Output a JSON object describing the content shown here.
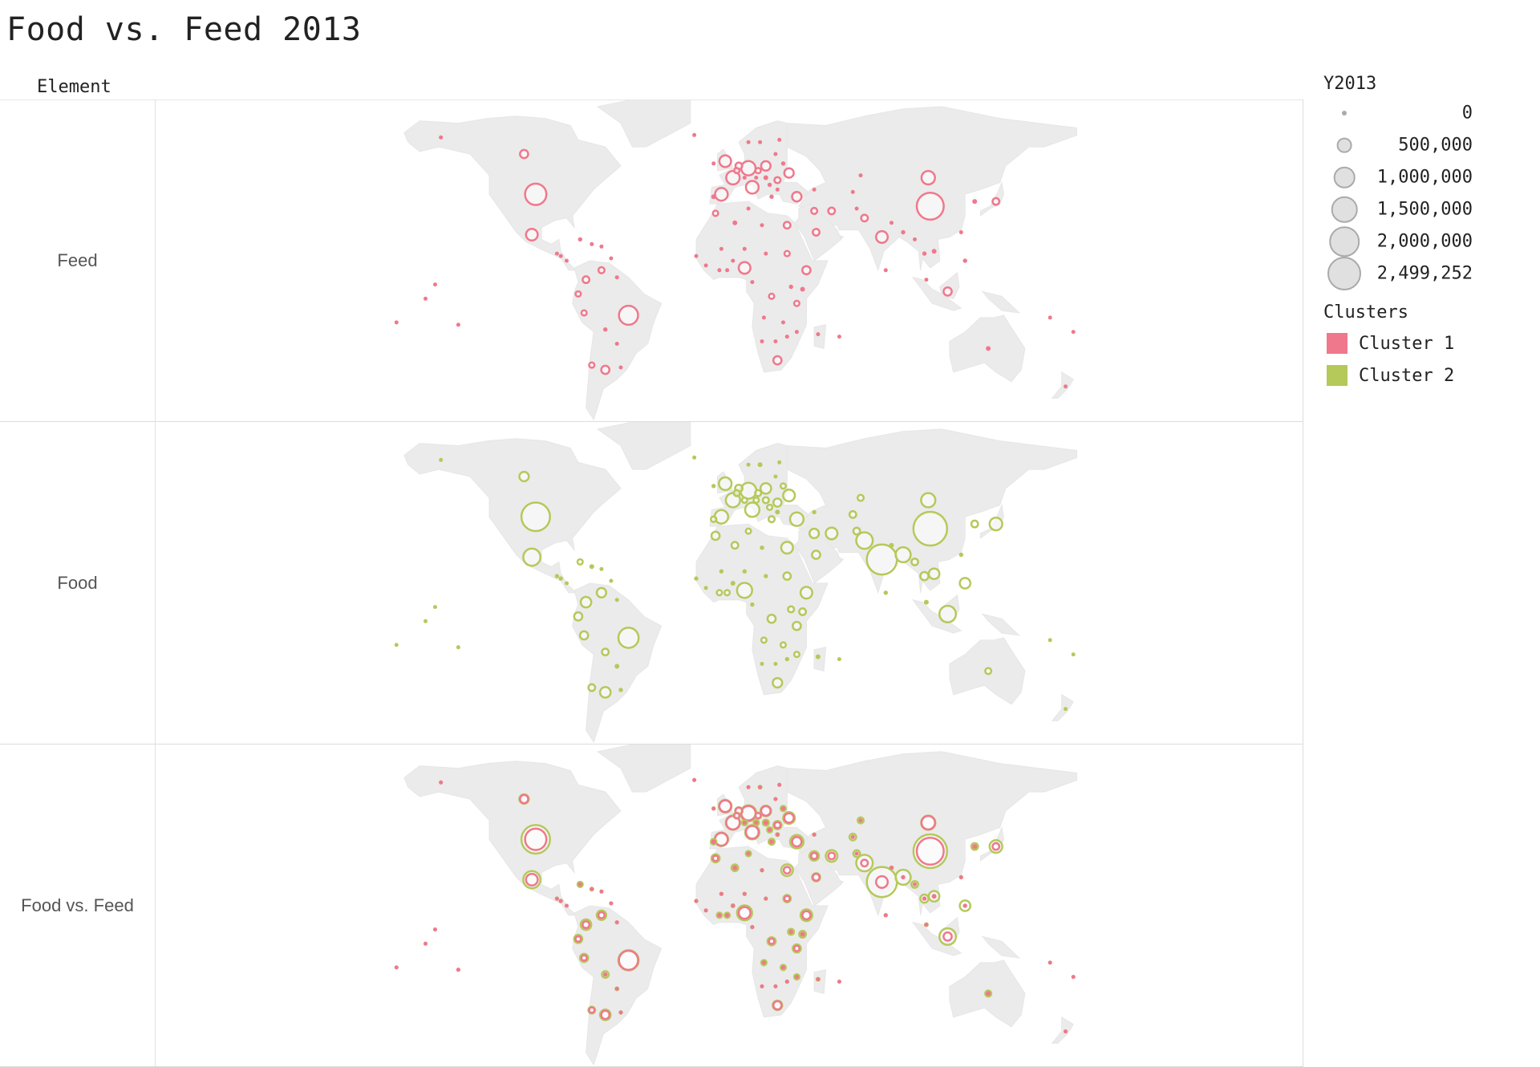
{
  "title": "Food vs. Feed 2013",
  "column_header": "Element",
  "rows": [
    {
      "label": "Feed"
    },
    {
      "label": "Food"
    },
    {
      "label": "Food vs. Feed"
    }
  ],
  "legend": {
    "size_title": "Y2013",
    "size_values": [
      {
        "label": "0",
        "value": 0
      },
      {
        "label": "500,000",
        "value": 500000
      },
      {
        "label": "1,000,000",
        "value": 1000000
      },
      {
        "label": "1,500,000",
        "value": 1500000
      },
      {
        "label": "2,000,000",
        "value": 2000000
      },
      {
        "label": "2,499,252",
        "value": 2499252
      }
    ],
    "color_title": "Clusters",
    "clusters": [
      {
        "label": "Cluster 1",
        "color": "#f0788c"
      },
      {
        "label": "Cluster 2",
        "color": "#b5c95a"
      }
    ]
  },
  "colors": {
    "land": "#ebebeb",
    "feed": "#f0788c",
    "food": "#b5c95a"
  },
  "chart_data": {
    "type": "symbol-map",
    "size_field": "Y2013",
    "size_max": 2499252,
    "points": [
      {
        "lon": -149,
        "lat": 64,
        "feed": 5000,
        "food": 20000
      },
      {
        "lon": -100,
        "lat": 40,
        "feed": 1000000,
        "food": 1800000
      },
      {
        "lon": -106,
        "lat": 57,
        "feed": 150000,
        "food": 200000
      },
      {
        "lon": -18,
        "lat": 65,
        "feed": 5000,
        "food": 5000
      },
      {
        "lon": -102,
        "lat": 23,
        "feed": 300000,
        "food": 650000
      },
      {
        "lon": -89,
        "lat": 15,
        "feed": 30000,
        "food": 40000
      },
      {
        "lon": -87,
        "lat": 14,
        "feed": 30000,
        "food": 40000
      },
      {
        "lon": -84,
        "lat": 12,
        "feed": 20000,
        "food": 30000
      },
      {
        "lon": -77,
        "lat": 21,
        "feed": 40000,
        "food": 60000
      },
      {
        "lon": -71,
        "lat": 19,
        "feed": 30000,
        "food": 50000
      },
      {
        "lon": -66,
        "lat": 18,
        "feed": 20000,
        "food": 30000
      },
      {
        "lon": -61,
        "lat": 13,
        "feed": 10000,
        "food": 10000
      },
      {
        "lon": -74,
        "lat": 4,
        "feed": 100000,
        "food": 250000
      },
      {
        "lon": -66,
        "lat": 8,
        "feed": 80000,
        "food": 200000
      },
      {
        "lon": -58,
        "lat": 5,
        "feed": 10000,
        "food": 20000
      },
      {
        "lon": -78,
        "lat": -2,
        "feed": 60000,
        "food": 150000
      },
      {
        "lon": -75,
        "lat": -10,
        "feed": 60000,
        "food": 150000
      },
      {
        "lon": -64,
        "lat": -17,
        "feed": 40000,
        "food": 100000
      },
      {
        "lon": -52,
        "lat": -11,
        "feed": 800000,
        "food": 900000
      },
      {
        "lon": -58,
        "lat": -23,
        "feed": 30000,
        "food": 50000
      },
      {
        "lon": -56,
        "lat": -33,
        "feed": 30000,
        "food": 40000
      },
      {
        "lon": -64,
        "lat": -34,
        "feed": 150000,
        "food": 250000
      },
      {
        "lon": -71,
        "lat": -32,
        "feed": 60000,
        "food": 100000
      },
      {
        "lon": -8,
        "lat": 53,
        "feed": 30000,
        "food": 40000
      },
      {
        "lon": -2,
        "lat": 54,
        "feed": 300000,
        "food": 350000
      },
      {
        "lon": 2,
        "lat": 47,
        "feed": 400000,
        "food": 450000
      },
      {
        "lon": 10,
        "lat": 51,
        "feed": 450000,
        "food": 550000
      },
      {
        "lon": 5,
        "lat": 52,
        "feed": 100000,
        "food": 120000
      },
      {
        "lon": 4,
        "lat": 50,
        "feed": 60000,
        "food": 80000
      },
      {
        "lon": -4,
        "lat": 40,
        "feed": 350000,
        "food": 400000
      },
      {
        "lon": -8,
        "lat": 39,
        "feed": 50000,
        "food": 70000
      },
      {
        "lon": 12,
        "lat": 43,
        "feed": 350000,
        "food": 450000
      },
      {
        "lon": 8,
        "lat": 47,
        "feed": 30000,
        "food": 60000
      },
      {
        "lon": 14,
        "lat": 47,
        "feed": 30000,
        "food": 60000
      },
      {
        "lon": 19,
        "lat": 52,
        "feed": 200000,
        "food": 250000
      },
      {
        "lon": 15,
        "lat": 50,
        "feed": 60000,
        "food": 80000
      },
      {
        "lon": 19,
        "lat": 47,
        "feed": 50000,
        "food": 80000
      },
      {
        "lon": 25,
        "lat": 46,
        "feed": 80000,
        "food": 150000
      },
      {
        "lon": 21,
        "lat": 44,
        "feed": 40000,
        "food": 60000
      },
      {
        "lon": 25,
        "lat": 42,
        "feed": 30000,
        "food": 50000
      },
      {
        "lon": 22,
        "lat": 39,
        "feed": 40000,
        "food": 80000
      },
      {
        "lon": 10,
        "lat": 62,
        "feed": 20000,
        "food": 30000
      },
      {
        "lon": 16,
        "lat": 62,
        "feed": 30000,
        "food": 50000
      },
      {
        "lon": 26,
        "lat": 63,
        "feed": 20000,
        "food": 30000
      },
      {
        "lon": 24,
        "lat": 57,
        "feed": 20000,
        "food": 30000
      },
      {
        "lon": 28,
        "lat": 53,
        "feed": 40000,
        "food": 60000
      },
      {
        "lon": 31,
        "lat": 49,
        "feed": 200000,
        "food": 300000
      },
      {
        "lon": 35,
        "lat": 39,
        "feed": 200000,
        "food": 400000
      },
      {
        "lon": 44,
        "lat": 42,
        "feed": 20000,
        "food": 40000
      },
      {
        "lon": 53,
        "lat": 33,
        "feed": 100000,
        "food": 300000
      },
      {
        "lon": 44,
        "lat": 33,
        "feed": 80000,
        "food": 200000
      },
      {
        "lon": 45,
        "lat": 24,
        "feed": 100000,
        "food": 150000
      },
      {
        "lon": 66,
        "lat": 34,
        "feed": 30000,
        "food": 100000
      },
      {
        "lon": 68,
        "lat": 48,
        "feed": 30000,
        "food": 80000
      },
      {
        "lon": 64,
        "lat": 41,
        "feed": 30000,
        "food": 100000
      },
      {
        "lon": 70,
        "lat": 30,
        "feed": 100000,
        "food": 600000
      },
      {
        "lon": 79,
        "lat": 22,
        "feed": 300000,
        "food": 2000000
      },
      {
        "lon": 90,
        "lat": 24,
        "feed": 40000,
        "food": 500000
      },
      {
        "lon": 84,
        "lat": 28,
        "feed": 20000,
        "food": 50000
      },
      {
        "lon": 81,
        "lat": 8,
        "feed": 10000,
        "food": 40000
      },
      {
        "lon": 104,
        "lat": 35,
        "feed": 1600000,
        "food": 2499252
      },
      {
        "lon": 103,
        "lat": 47,
        "feed": 400000,
        "food": 450000
      },
      {
        "lon": 127,
        "lat": 37,
        "feed": 50000,
        "food": 100000
      },
      {
        "lon": 138,
        "lat": 37,
        "feed": 100000,
        "food": 350000
      },
      {
        "lon": 96,
        "lat": 21,
        "feed": 30000,
        "food": 100000
      },
      {
        "lon": 101,
        "lat": 15,
        "feed": 40000,
        "food": 150000
      },
      {
        "lon": 106,
        "lat": 16,
        "feed": 50000,
        "food": 250000
      },
      {
        "lon": 102,
        "lat": 4,
        "feed": 20000,
        "food": 50000
      },
      {
        "lon": 122,
        "lat": 12,
        "feed": 40000,
        "food": 250000
      },
      {
        "lon": 113,
        "lat": -1,
        "feed": 150000,
        "food": 600000
      },
      {
        "lon": 120,
        "lat": 24,
        "feed": 20000,
        "food": 40000
      },
      {
        "lon": 134,
        "lat": -25,
        "feed": 50000,
        "food": 80000
      },
      {
        "lon": 174,
        "lat": -41,
        "feed": 20000,
        "food": 20000
      },
      {
        "lon": 166,
        "lat": -12,
        "feed": 5000,
        "food": 5000
      },
      {
        "lon": 178,
        "lat": -18,
        "feed": 5000,
        "food": 5000
      },
      {
        "lon": -172,
        "lat": -14,
        "feed": 5000,
        "food": 5000
      },
      {
        "lon": -157,
        "lat": -4,
        "feed": 5000,
        "food": 5000
      },
      {
        "lon": -140,
        "lat": -15,
        "feed": 5000,
        "food": 5000
      },
      {
        "lon": -152,
        "lat": 2,
        "feed": 5000,
        "food": 5000
      },
      {
        "lon": -17,
        "lat": 14,
        "feed": 20000,
        "food": 40000
      },
      {
        "lon": -12,
        "lat": 10,
        "feed": 10000,
        "food": 30000
      },
      {
        "lon": -5,
        "lat": 8,
        "feed": 30000,
        "food": 60000
      },
      {
        "lon": -1,
        "lat": 8,
        "feed": 30000,
        "food": 60000
      },
      {
        "lon": 2,
        "lat": 12,
        "feed": 20000,
        "food": 50000
      },
      {
        "lon": 8,
        "lat": 9,
        "feed": 300000,
        "food": 500000
      },
      {
        "lon": 8,
        "lat": 17,
        "feed": 20000,
        "food": 40000
      },
      {
        "lon": -4,
        "lat": 17,
        "feed": 20000,
        "food": 40000
      },
      {
        "lon": 3,
        "lat": 28,
        "feed": 50000,
        "food": 100000
      },
      {
        "lon": 10,
        "lat": 34,
        "feed": 30000,
        "food": 60000
      },
      {
        "lon": 17,
        "lat": 27,
        "feed": 20000,
        "food": 40000
      },
      {
        "lon": 30,
        "lat": 27,
        "feed": 100000,
        "food": 300000
      },
      {
        "lon": -7,
        "lat": 32,
        "feed": 60000,
        "food": 150000
      },
      {
        "lon": 30,
        "lat": 15,
        "feed": 60000,
        "food": 120000
      },
      {
        "lon": 19,
        "lat": 15,
        "feed": 20000,
        "food": 40000
      },
      {
        "lon": 40,
        "lat": 8,
        "feed": 150000,
        "food": 300000
      },
      {
        "lon": 38,
        "lat": 0,
        "feed": 50000,
        "food": 100000
      },
      {
        "lon": 32,
        "lat": 1,
        "feed": 40000,
        "food": 80000
      },
      {
        "lon": 22,
        "lat": -3,
        "feed": 60000,
        "food": 150000
      },
      {
        "lon": 12,
        "lat": 3,
        "feed": 20000,
        "food": 40000
      },
      {
        "lon": 35,
        "lat": -6,
        "feed": 60000,
        "food": 150000
      },
      {
        "lon": 18,
        "lat": -12,
        "feed": 30000,
        "food": 60000
      },
      {
        "lon": 28,
        "lat": -14,
        "feed": 30000,
        "food": 60000
      },
      {
        "lon": 35,
        "lat": -18,
        "feed": 30000,
        "food": 60000
      },
      {
        "lon": 30,
        "lat": -20,
        "feed": 20000,
        "food": 40000
      },
      {
        "lon": 46,
        "lat": -19,
        "feed": 20000,
        "food": 50000
      },
      {
        "lon": 24,
        "lat": -22,
        "feed": 10000,
        "food": 20000
      },
      {
        "lon": 17,
        "lat": -22,
        "feed": 10000,
        "food": 20000
      },
      {
        "lon": 25,
        "lat": -30,
        "feed": 150000,
        "food": 200000
      },
      {
        "lon": 57,
        "lat": -20,
        "feed": 5000,
        "food": 5000
      }
    ]
  }
}
